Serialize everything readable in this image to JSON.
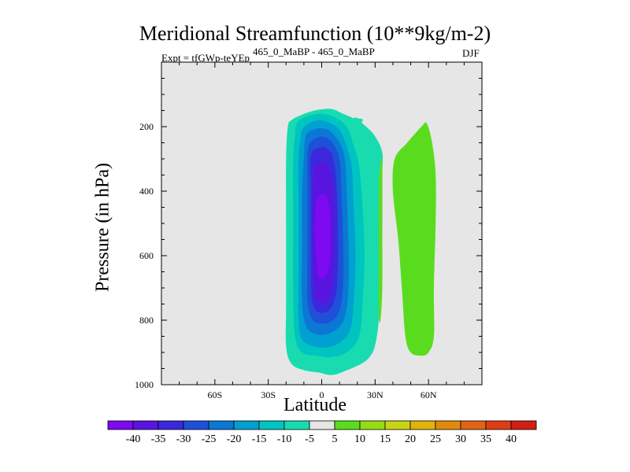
{
  "chart_data": {
    "type": "contour",
    "title": "Meridional Streamfunction (10**9kg/m-2)",
    "subtitle_left": "Expt = tfGWp-teYEp",
    "subtitle_center": "465_0_MaBP - 465_0_MaBP",
    "subtitle_right": "DJF",
    "xlabel": "Latitude",
    "ylabel": "Pressure (in hPa)",
    "xlim": [
      -90,
      90
    ],
    "ylim": [
      1000,
      0
    ],
    "xticks": [
      {
        "value": -60,
        "label": "60S"
      },
      {
        "value": -30,
        "label": "30S"
      },
      {
        "value": 0,
        "label": "0"
      },
      {
        "value": 30,
        "label": "30N"
      },
      {
        "value": 60,
        "label": "60N"
      }
    ],
    "yticks": [
      {
        "value": 200,
        "label": "200"
      },
      {
        "value": 400,
        "label": "400"
      },
      {
        "value": 600,
        "label": "600"
      },
      {
        "value": 800,
        "label": "800"
      },
      {
        "value": 1000,
        "label": "1000"
      }
    ],
    "background_color": "#e6e6e6",
    "levels": [
      -40,
      -35,
      -30,
      -25,
      -20,
      -15,
      -10,
      -5,
      5,
      10,
      15,
      20,
      25,
      30,
      35,
      40
    ],
    "colors": [
      "#7d0af0",
      "#5a14e0",
      "#3c28dc",
      "#1e50d8",
      "#0a78d4",
      "#00a0d0",
      "#00c4c0",
      "#18dcb0",
      "#e6e6e6",
      "#5adc1e",
      "#96dc14",
      "#c8d414",
      "#e0b40a",
      "#e08c0a",
      "#e06414",
      "#e03c14",
      "#d21e14"
    ],
    "features": [
      {
        "name": "southern-hadley-cell",
        "sign": "negative",
        "shells": [
          {
            "level": -5,
            "outline": [
              [
                -17,
                180
              ],
              [
                -12,
                165
              ],
              [
                -4,
                150
              ],
              [
                5,
                145
              ],
              [
                12,
                160
              ],
              [
                20,
                180
              ],
              [
                25,
                200
              ],
              [
                30,
                230
              ],
              [
                34,
                280
              ],
              [
                34,
                350
              ],
              [
                34,
                500
              ],
              [
                33,
                700
              ],
              [
                31,
                850
              ],
              [
                26,
                920
              ],
              [
                12,
                960
              ],
              [
                5,
                970
              ],
              [
                -2,
                962
              ],
              [
                -10,
                955
              ],
              [
                -17,
                935
              ],
              [
                -20,
                880
              ],
              [
                -20,
                750
              ],
              [
                -20,
                500
              ],
              [
                -20,
                300
              ],
              [
                -19,
                200
              ]
            ]
          },
          {
            "level": -10,
            "outline": [
              [
                -14,
                190
              ],
              [
                -9,
                170
              ],
              [
                -1,
                160
              ],
              [
                7,
                170
              ],
              [
                14,
                200
              ],
              [
                18,
                260
              ],
              [
                21,
                320
              ],
              [
                23,
                450
              ],
              [
                24,
                600
              ],
              [
                23,
                740
              ],
              [
                21,
                850
              ],
              [
                14,
                900
              ],
              [
                5,
                915
              ],
              [
                -3,
                910
              ],
              [
                -11,
                900
              ],
              [
                -15,
                850
              ],
              [
                -16,
                700
              ],
              [
                -16,
                500
              ],
              [
                -16,
                300
              ],
              [
                -15,
                230
              ]
            ]
          },
          {
            "level": -15,
            "outline": [
              [
                -11,
                210
              ],
              [
                -7,
                190
              ],
              [
                -1,
                180
              ],
              [
                5,
                190
              ],
              [
                10,
                210
              ],
              [
                14,
                260
              ],
              [
                17,
                330
              ],
              [
                18,
                450
              ],
              [
                19,
                600
              ],
              [
                18,
                740
              ],
              [
                16,
                830
              ],
              [
                10,
                870
              ],
              [
                2,
                885
              ],
              [
                -5,
                880
              ],
              [
                -11,
                860
              ],
              [
                -13,
                800
              ],
              [
                -13,
                650
              ],
              [
                -13,
                450
              ],
              [
                -13,
                300
              ],
              [
                -12,
                240
              ]
            ]
          },
          {
            "level": -20,
            "outline": [
              [
                -9,
                230
              ],
              [
                -5,
                210
              ],
              [
                0,
                205
              ],
              [
                5,
                215
              ],
              [
                10,
                250
              ],
              [
                13,
                300
              ],
              [
                14,
                400
              ],
              [
                15,
                550
              ],
              [
                15,
                700
              ],
              [
                13,
                790
              ],
              [
                8,
                830
              ],
              [
                1,
                845
              ],
              [
                -5,
                840
              ],
              [
                -9,
                815
              ],
              [
                -11,
                740
              ],
              [
                -11,
                550
              ],
              [
                -11,
                400
              ],
              [
                -10,
                300
              ]
            ]
          },
          {
            "level": -25,
            "outline": [
              [
                -7,
                255
              ],
              [
                -3,
                235
              ],
              [
                1,
                232
              ],
              [
                6,
                250
              ],
              [
                10,
                300
              ],
              [
                11,
                400
              ],
              [
                12,
                550
              ],
              [
                12,
                690
              ],
              [
                10,
                770
              ],
              [
                5,
                805
              ],
              [
                -2,
                810
              ],
              [
                -6,
                790
              ],
              [
                -8,
                730
              ],
              [
                -8,
                550
              ],
              [
                -8,
                400
              ],
              [
                -8,
                300
              ]
            ]
          },
          {
            "level": -30,
            "outline": [
              [
                -6,
                290
              ],
              [
                -2,
                265
              ],
              [
                2,
                265
              ],
              [
                6,
                290
              ],
              [
                8,
                360
              ],
              [
                9,
                480
              ],
              [
                9,
                620
              ],
              [
                8,
                720
              ],
              [
                4,
                770
              ],
              [
                -2,
                775
              ],
              [
                -5,
                750
              ],
              [
                -6,
                680
              ],
              [
                -6,
                520
              ],
              [
                -6,
                400
              ]
            ]
          },
          {
            "level": -35,
            "outline": [
              [
                -4,
                330
              ],
              [
                -1,
                310
              ],
              [
                2,
                312
              ],
              [
                5,
                350
              ],
              [
                7,
                440
              ],
              [
                7,
                580
              ],
              [
                6,
                690
              ],
              [
                3,
                740
              ],
              [
                -1,
                745
              ],
              [
                -4,
                720
              ],
              [
                -5,
                640
              ],
              [
                -5,
                500
              ],
              [
                -5,
                400
              ]
            ]
          },
          {
            "level": -40,
            "outline": [
              [
                -3,
                430
              ],
              [
                0,
                410
              ],
              [
                3,
                420
              ],
              [
                5,
                480
              ],
              [
                5,
                580
              ],
              [
                4,
                640
              ],
              [
                1,
                670
              ],
              [
                -2,
                660
              ],
              [
                -3,
                600
              ],
              [
                -4,
                520
              ]
            ]
          }
        ]
      },
      {
        "name": "northern-cell-upper",
        "sign": "negative",
        "shells": [
          {
            "level": -5,
            "outline": [
              [
                18,
                175
              ],
              [
                21,
                175
              ],
              [
                23,
                178
              ],
              [
                22,
                200
              ],
              [
                22,
                245
              ],
              [
                20,
                265
              ],
              [
                18,
                250
              ],
              [
                19,
                220
              ]
            ]
          }
        ]
      },
      {
        "name": "northern-thin-sliver",
        "sign": "positive",
        "shells": [
          {
            "level": 5,
            "outline": [
              [
                33,
                310
              ],
              [
                34,
                320
              ],
              [
                34,
                500
              ],
              [
                34,
                700
              ],
              [
                33,
                800
              ],
              [
                32,
                780
              ],
              [
                32,
                600
              ],
              [
                32,
                400
              ]
            ]
          }
        ]
      },
      {
        "name": "northern-ferrel-cell",
        "sign": "positive",
        "shells": [
          {
            "level": 5,
            "outline": [
              [
                41,
                300
              ],
              [
                48,
                250
              ],
              [
                56,
                200
              ],
              [
                59,
                190
              ],
              [
                62,
                250
              ],
              [
                64,
                350
              ],
              [
                64,
                500
              ],
              [
                63,
                700
              ],
              [
                63,
                850
              ],
              [
                60,
                900
              ],
              [
                56,
                910
              ],
              [
                50,
                900
              ],
              [
                47,
                850
              ],
              [
                45,
                700
              ],
              [
                43,
                550
              ],
              [
                40,
                400
              ]
            ]
          }
        ]
      }
    ]
  }
}
